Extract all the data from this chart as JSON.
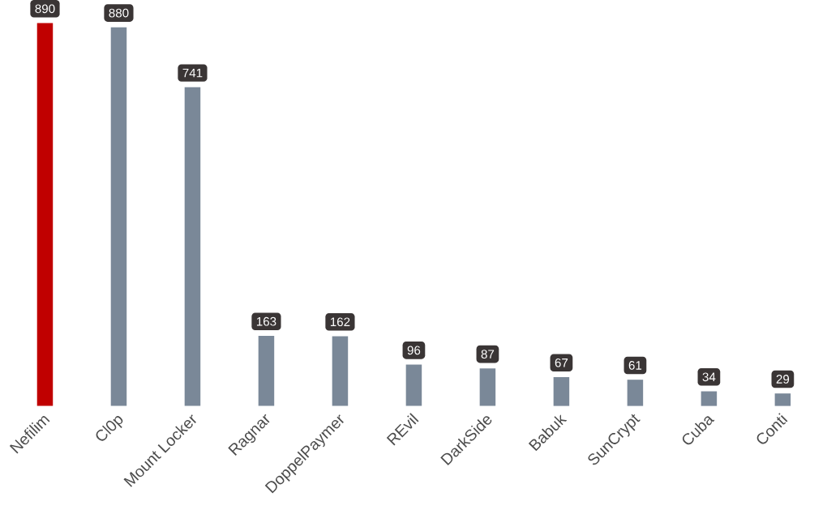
{
  "chart_data": {
    "type": "bar",
    "categories": [
      "Nefilim",
      "Cl0p",
      "Mount Locker",
      "Ragnar",
      "DoppelPaymer",
      "REvil",
      "DarkSide",
      "Babuk",
      "SunCrypt",
      "Cuba",
      "Conti"
    ],
    "values": [
      890,
      880,
      741,
      163,
      162,
      96,
      87,
      67,
      61,
      34,
      29
    ],
    "colors": [
      "#c00000",
      "#7a8898",
      "#7a8898",
      "#7a8898",
      "#7a8898",
      "#7a8898",
      "#7a8898",
      "#7a8898",
      "#7a8898",
      "#7a8898",
      "#7a8898"
    ],
    "data_labels": true
  }
}
